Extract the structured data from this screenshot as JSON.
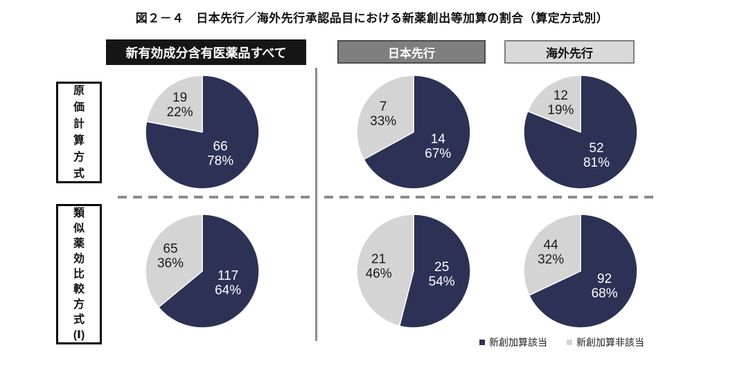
{
  "title": "図２－４　日本先行／海外先行承認品目における新薬創出等加算の割合（算定方式別）",
  "columns": [
    {
      "label": "新有効成分含有医薬品すべて",
      "bg": "#161616",
      "fg": "#ffffff",
      "border": "#161616"
    },
    {
      "label": "日本先行",
      "bg": "#7f7f7f",
      "fg": "#ffffff",
      "border": "#4a4a4a"
    },
    {
      "label": "海外先行",
      "bg": "#d9d9d9",
      "fg": "#111111",
      "border": "#7f7f7f"
    }
  ],
  "rows": [
    {
      "label": "原価計算方式",
      "lines": [
        "原",
        "価",
        "計",
        "算",
        "方",
        "式"
      ]
    },
    {
      "label": "類似薬効比較方式（Ⅰ）",
      "lines": [
        "類",
        "似",
        "薬",
        "効",
        "比",
        "較",
        "方",
        "式",
        "(Ⅰ)"
      ]
    }
  ],
  "legend": [
    {
      "label": "新創加算該当",
      "color": "#2d3156"
    },
    {
      "label": "新創加算非該当",
      "color": "#d4d4d4"
    }
  ],
  "colors": {
    "pie_primary": "#2d3156",
    "pie_secondary": "#d4d4d4",
    "slice_border": "#ffffff",
    "separator": "#8c8c8c",
    "dark_label_text": "#ffffff",
    "light_label_text": "#1a1a1a"
  },
  "chart_data": [
    {
      "type": "pie",
      "row": "原価計算方式",
      "column": "新有効成分含有医薬品すべて",
      "slices": [
        {
          "label": "新創加算該当",
          "count": 66,
          "percent": 78
        },
        {
          "label": "新創加算非該当",
          "count": 19,
          "percent": 22
        }
      ]
    },
    {
      "type": "pie",
      "row": "原価計算方式",
      "column": "日本先行",
      "slices": [
        {
          "label": "新創加算該当",
          "count": 14,
          "percent": 67
        },
        {
          "label": "新創加算非該当",
          "count": 7,
          "percent": 33
        }
      ]
    },
    {
      "type": "pie",
      "row": "原価計算方式",
      "column": "海外先行",
      "slices": [
        {
          "label": "新創加算該当",
          "count": 52,
          "percent": 81
        },
        {
          "label": "新創加算非該当",
          "count": 12,
          "percent": 19
        }
      ]
    },
    {
      "type": "pie",
      "row": "類似薬効比較方式（Ⅰ）",
      "column": "新有効成分含有医薬品すべて",
      "slices": [
        {
          "label": "新創加算該当",
          "count": 117,
          "percent": 64
        },
        {
          "label": "新創加算非該当",
          "count": 65,
          "percent": 36
        }
      ]
    },
    {
      "type": "pie",
      "row": "類似薬効比較方式（Ⅰ）",
      "column": "日本先行",
      "slices": [
        {
          "label": "新創加算該当",
          "count": 25,
          "percent": 54
        },
        {
          "label": "新創加算非該当",
          "count": 21,
          "percent": 46
        }
      ]
    },
    {
      "type": "pie",
      "row": "類似薬効比較方式（Ⅰ）",
      "column": "海外先行",
      "slices": [
        {
          "label": "新創加算該当",
          "count": 92,
          "percent": 68
        },
        {
          "label": "新創加算非該当",
          "count": 44,
          "percent": 32
        }
      ]
    }
  ]
}
